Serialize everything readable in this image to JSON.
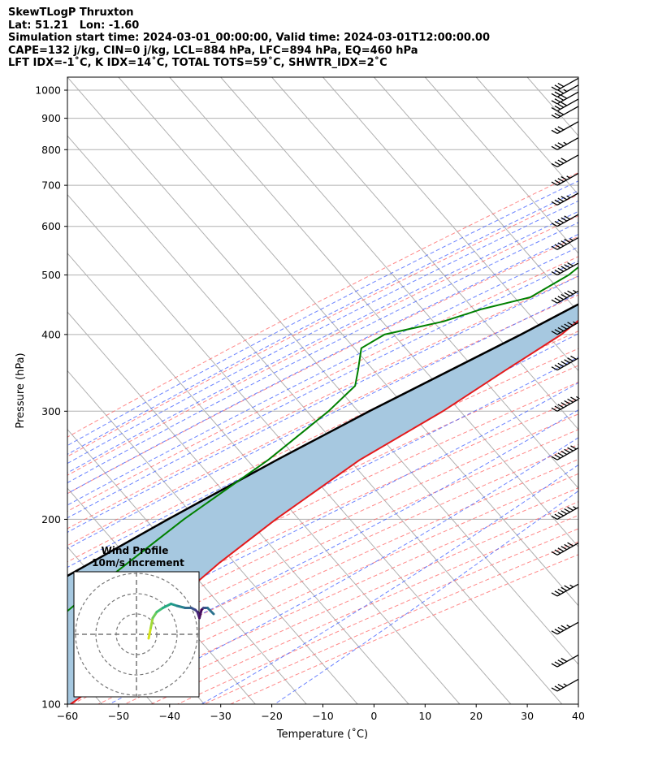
{
  "header": {
    "line1": "SkewTLogP Thruxton",
    "line2": "Lat: 51.21   Lon: -1.60",
    "line3": "Simulation start time: 2024-03-01_00:00:00, Valid time: 2024-03-01T12:00:00.00",
    "line4": "CAPE=132 j/kg, CIN=0 j/kg, LCL=884 hPa, LFC=894 hPa, EQ=460 hPa",
    "line5": "LFT IDX=-1˚C, K IDX=14˚C, TOTAL TOTS=59˚C, SHWTR_IDX=2˚C"
  },
  "inset": {
    "title_line1": "Wind Profile",
    "title_line2": "10m/s increment"
  },
  "colors": {
    "temperature": "#e41a1c",
    "dewpoint": "#008000",
    "parcel": "#000000",
    "cape_fill": "#a6c8e0",
    "isotherm": "#b0b0b0",
    "dry_adiabat": "#ff6060",
    "moist_adiabat": "#3b5bff",
    "mixing_ratio": "#a050c0"
  },
  "chart_data": {
    "type": "line",
    "xlabel": "Temperature (˚C)",
    "ylabel": "Pressure (hPa)",
    "xlim": [
      -60,
      40
    ],
    "ylim": [
      1050,
      100
    ],
    "y_scale": "log",
    "x_ticks": [
      "−60",
      "−50",
      "−40",
      "−30",
      "−20",
      "−10",
      "0",
      "10",
      "20",
      "30",
      "40"
    ],
    "y_ticks": [
      "1000",
      "900",
      "800",
      "700",
      "600",
      "500",
      "400",
      "300",
      "200",
      "100"
    ],
    "series": [
      {
        "key": "temperature",
        "pressure": [
          1000,
          950,
          900,
          850,
          800,
          750,
          700,
          650,
          600,
          550,
          500,
          460,
          440,
          400,
          350,
          300,
          250,
          200,
          170,
          150,
          130,
          120,
          110,
          100
        ],
        "values": [
          7.9,
          5.0,
          2.1,
          -0.3,
          -2.9,
          -5.7,
          -8.5,
          -11.6,
          -14.5,
          -17.7,
          -20.9,
          -23.9,
          -24.5,
          -26.3,
          -31.1,
          -36.4,
          -44.4,
          -50.7,
          -54.3,
          -56.2,
          -57.4,
          -57.0,
          -56.6,
          -59.4
        ]
      },
      {
        "key": "dewpoint",
        "pressure": [
          1000,
          975,
          950,
          925,
          900,
          850,
          800,
          700,
          650,
          600,
          550,
          500,
          460,
          440,
          420,
          400,
          380,
          350,
          330,
          300,
          250,
          200,
          150,
          100
        ],
        "values": [
          1.8,
          1.8,
          1.3,
          -1.6,
          -5.6,
          -10.8,
          -15.0,
          -24.6,
          -29.6,
          -31.5,
          -33.1,
          -35.0,
          -38.7,
          -46.2,
          -51.6,
          -60.9,
          -63.1,
          -60.0,
          -57.9,
          -58.8,
          -62.3,
          -68.7,
          -74.9,
          -81.8
        ]
      },
      {
        "key": "parcel",
        "pressure": [
          1000,
          950,
          900,
          884,
          850,
          800,
          700,
          600,
          500,
          460,
          400,
          300,
          250,
          200,
          150,
          100
        ],
        "values": [
          7.9,
          5.0,
          2.3,
          1.3,
          0.5,
          -1.6,
          -7.2,
          -14.2,
          -23.0,
          -26.7,
          -34.2,
          -50.8,
          -60.6,
          -71.8,
          -85.4,
          -103.9
        ]
      }
    ],
    "cape_area": "between temperature and parcel from 460 hPa to 100 hPa",
    "wind_barbs": {
      "pressure": [
        1000,
        975,
        950,
        925,
        900,
        850,
        800,
        750,
        700,
        650,
        600,
        550,
        500,
        450,
        400,
        350,
        300,
        250,
        200,
        175,
        150,
        130,
        115,
        105
      ],
      "speed_kt": [
        30,
        35,
        40,
        40,
        30,
        30,
        35,
        40,
        45,
        45,
        50,
        55,
        60,
        65,
        65,
        70,
        75,
        70,
        65,
        60,
        55,
        45,
        40,
        35
      ]
    },
    "hodograph": {
      "range_ring_step_ms": 10,
      "u": [
        6,
        7,
        8,
        10,
        13,
        17,
        20,
        24,
        27,
        29,
        30,
        31,
        32,
        33,
        35,
        38
      ],
      "v": [
        -2,
        3,
        8,
        11,
        13,
        15,
        14,
        13,
        13,
        12,
        11,
        8,
        12,
        13,
        13,
        10
      ]
    }
  }
}
